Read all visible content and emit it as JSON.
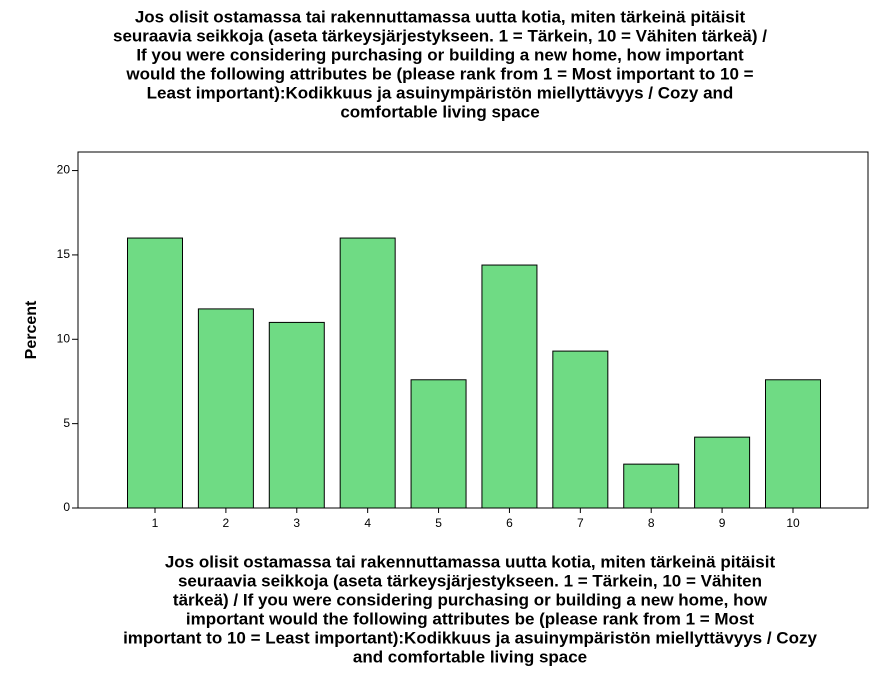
{
  "chart_data": {
    "type": "bar",
    "title": [
      "Jos olisit ostamassa tai rakennuttamassa uutta kotia, miten tärkeinä pitäisit",
      "seuraavia seikkoja (aseta tärkeysjärjestykseen. 1 = Tärkein, 10 = Vähiten tärkeä) /",
      "If you were considering purchasing or building a new home, how important",
      "would the following attributes be (please rank from 1 = Most important to 10 =",
      "Least important):Kodikkuus ja asuinympäristön miellyttävyys  /  Cozy and",
      "comfortable living space"
    ],
    "x_label": [
      "Jos olisit ostamassa tai rakennuttamassa uutta kotia, miten tärkeinä pitäisit",
      "seuraavia seikkoja (aseta tärkeysjärjestykseen. 1 = Tärkein, 10 = Vähiten",
      "tärkeä) / If you were considering purchasing or building a new home, how",
      "important would the following attributes be (please rank from 1 = Most",
      "important to 10 = Least important):Kodikkuus ja asuinympäristön miellyttävyys  /  Cozy",
      "and comfortable living space"
    ],
    "y_label": "Percent",
    "categories": [
      "1",
      "2",
      "3",
      "4",
      "5",
      "6",
      "7",
      "8",
      "9",
      "10"
    ],
    "values": [
      16.0,
      11.8,
      11.0,
      16.0,
      7.6,
      14.4,
      9.3,
      2.6,
      4.2,
      7.6
    ],
    "color": "#6fdb84",
    "ylim": [
      0,
      21.1
    ],
    "yticks": [
      0,
      5,
      10,
      15,
      20
    ],
    "grid": false
  }
}
